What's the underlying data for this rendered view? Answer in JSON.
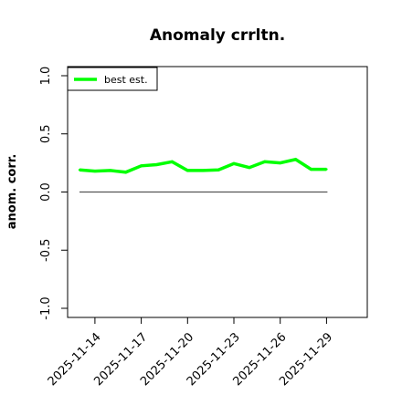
{
  "chart_data": {
    "type": "line",
    "title": "Anomaly crrltn.",
    "xlabel": "",
    "ylabel": "anom. corr.",
    "x": [
      "2025-11-13",
      "2025-11-14",
      "2025-11-15",
      "2025-11-16",
      "2025-11-17",
      "2025-11-18",
      "2025-11-19",
      "2025-11-20",
      "2025-11-21",
      "2025-11-22",
      "2025-11-23",
      "2025-11-24",
      "2025-11-25",
      "2025-11-26",
      "2025-11-27",
      "2025-11-28",
      "2025-11-29"
    ],
    "x_tick_labels": [
      "2025-11-14",
      "2025-11-17",
      "2025-11-20",
      "2025-11-23",
      "2025-11-26",
      "2025-11-29"
    ],
    "ylim": [
      -1.0,
      1.0
    ],
    "y_ticks": [
      "-1.0",
      "-0.5",
      "0.0",
      "0.5",
      "1.0"
    ],
    "series": [
      {
        "name": "best est.",
        "color": "#00ff00",
        "values": [
          0.19,
          0.18,
          0.185,
          0.17,
          0.225,
          0.235,
          0.26,
          0.185,
          0.185,
          0.19,
          0.245,
          0.21,
          0.26,
          0.25,
          0.28,
          0.195,
          0.195
        ]
      }
    ],
    "reference_line": {
      "y": 0.0,
      "color": "#555555"
    },
    "legend": {
      "position": "top-left"
    },
    "grid": false
  }
}
